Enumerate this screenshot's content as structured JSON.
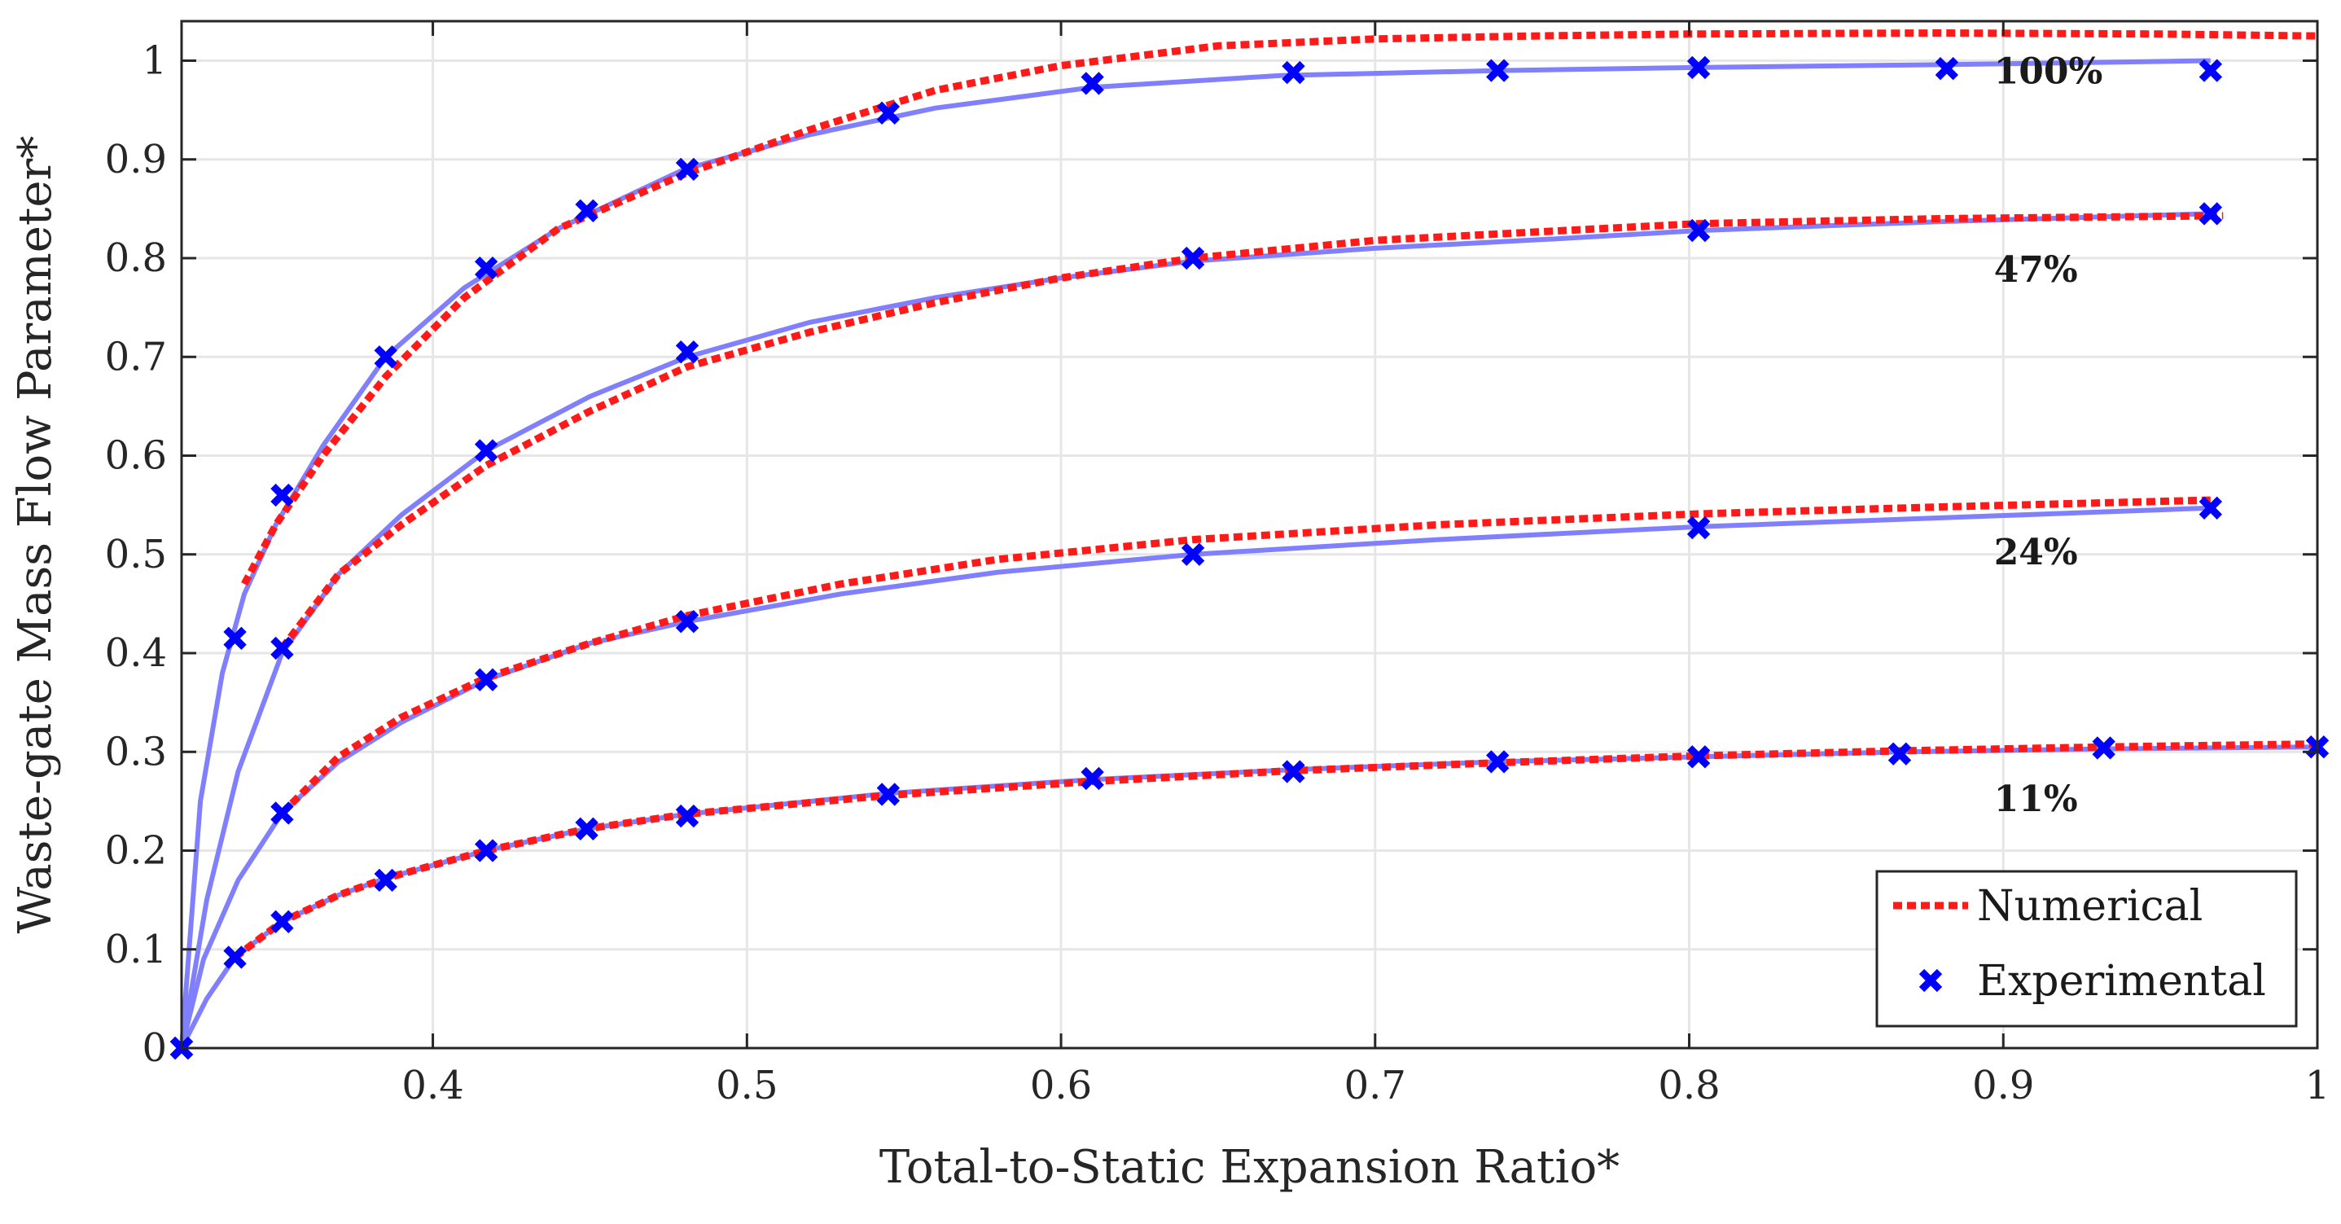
{
  "colors": {
    "numerical": "#ff1a1a",
    "experimental": "#0000ff",
    "fit": "#8080ff",
    "axis": "#262626"
  },
  "chart_data": {
    "type": "line",
    "title": "",
    "xlabel": "Total-to-Static Expansion Ratio*",
    "ylabel": "Waste-gate Mass Flow Parameter*",
    "xlim": [
      0.32,
      1.0
    ],
    "ylim": [
      0,
      1.04
    ],
    "grid": true,
    "xticks": [
      "0.4",
      "0.5",
      "0.6",
      "0.7",
      "0.8",
      "0.9",
      "1"
    ],
    "xtick_values": [
      0.4,
      0.5,
      0.6,
      0.7,
      0.8,
      0.9,
      1.0
    ],
    "yticks": [
      "0",
      "0.1",
      "0.2",
      "0.3",
      "0.4",
      "0.5",
      "0.6",
      "0.7",
      "0.8",
      "0.9",
      "1"
    ],
    "ytick_values": [
      0,
      0.1,
      0.2,
      0.3,
      0.4,
      0.5,
      0.6,
      0.7,
      0.8,
      0.9,
      1.0
    ],
    "legend": {
      "location": "bottom-right",
      "entries": [
        "Numerical",
        "Experimental"
      ]
    },
    "series": [
      {
        "name": "100%",
        "label": "100%",
        "label_at": [
          0.897,
          0.977
        ],
        "experimental": {
          "x": [
            0.32,
            0.337,
            0.352,
            0.385,
            0.417,
            0.449,
            0.481,
            0.545,
            0.61,
            0.674,
            0.739,
            0.803,
            0.882,
            0.966
          ],
          "y": [
            0.0,
            0.415,
            0.56,
            0.7,
            0.79,
            0.848,
            0.89,
            0.947,
            0.977,
            0.988,
            0.99,
            0.993,
            0.992,
            0.99
          ]
        },
        "fit": {
          "x": [
            0.32,
            0.326,
            0.333,
            0.34,
            0.35,
            0.365,
            0.385,
            0.41,
            0.44,
            0.48,
            0.52,
            0.56,
            0.61,
            0.67,
            0.74,
            0.8,
            0.88,
            0.966
          ],
          "y": [
            0.0,
            0.25,
            0.38,
            0.46,
            0.53,
            0.61,
            0.7,
            0.77,
            0.83,
            0.89,
            0.925,
            0.952,
            0.973,
            0.985,
            0.99,
            0.993,
            0.996,
            1.0
          ]
        },
        "numerical": {
          "x": [
            0.34,
            0.35,
            0.365,
            0.385,
            0.41,
            0.44,
            0.48,
            0.52,
            0.56,
            0.6,
            0.65,
            0.7,
            0.75,
            0.8,
            0.88,
            0.95,
            1.0
          ],
          "y": [
            0.47,
            0.53,
            0.6,
            0.68,
            0.76,
            0.83,
            0.885,
            0.93,
            0.97,
            0.995,
            1.015,
            1.022,
            1.025,
            1.027,
            1.028,
            1.027,
            1.025
          ]
        }
      },
      {
        "name": "47%",
        "label": "47%",
        "label_at": [
          0.897,
          0.776
        ],
        "experimental": {
          "x": [
            0.352,
            0.417,
            0.481,
            0.642,
            0.803,
            0.966
          ],
          "y": [
            0.405,
            0.605,
            0.705,
            0.8,
            0.828,
            0.845
          ]
        },
        "fit": {
          "x": [
            0.32,
            0.328,
            0.338,
            0.352,
            0.37,
            0.39,
            0.417,
            0.45,
            0.481,
            0.52,
            0.56,
            0.6,
            0.642,
            0.7,
            0.76,
            0.803,
            0.88,
            0.966
          ],
          "y": [
            0.0,
            0.15,
            0.28,
            0.4,
            0.48,
            0.54,
            0.605,
            0.66,
            0.7,
            0.735,
            0.76,
            0.78,
            0.797,
            0.81,
            0.82,
            0.828,
            0.837,
            0.845
          ]
        },
        "numerical": {
          "x": [
            0.352,
            0.37,
            0.39,
            0.417,
            0.45,
            0.481,
            0.52,
            0.56,
            0.6,
            0.642,
            0.7,
            0.76,
            0.803,
            0.88,
            0.97
          ],
          "y": [
            0.405,
            0.48,
            0.53,
            0.59,
            0.645,
            0.69,
            0.725,
            0.755,
            0.78,
            0.8,
            0.818,
            0.828,
            0.835,
            0.84,
            0.843
          ]
        }
      },
      {
        "name": "24%",
        "label": "24%",
        "label_at": [
          0.897,
          0.49
        ],
        "experimental": {
          "x": [
            0.32,
            0.352,
            0.417,
            0.481,
            0.642,
            0.803,
            0.966
          ],
          "y": [
            0.0,
            0.238,
            0.373,
            0.432,
            0.5,
            0.527,
            0.547
          ]
        },
        "fit": {
          "x": [
            0.32,
            0.327,
            0.338,
            0.352,
            0.37,
            0.39,
            0.417,
            0.45,
            0.481,
            0.53,
            0.58,
            0.642,
            0.72,
            0.803,
            0.88,
            0.966
          ],
          "y": [
            0.0,
            0.09,
            0.17,
            0.238,
            0.29,
            0.33,
            0.373,
            0.41,
            0.432,
            0.46,
            0.482,
            0.5,
            0.515,
            0.528,
            0.537,
            0.547
          ]
        },
        "numerical": {
          "x": [
            0.352,
            0.37,
            0.39,
            0.417,
            0.45,
            0.481,
            0.53,
            0.58,
            0.642,
            0.72,
            0.803,
            0.88,
            0.966
          ],
          "y": [
            0.238,
            0.295,
            0.335,
            0.375,
            0.41,
            0.438,
            0.47,
            0.495,
            0.515,
            0.53,
            0.541,
            0.548,
            0.555
          ]
        }
      },
      {
        "name": "11%",
        "label": "11%",
        "label_at": [
          0.897,
          0.24
        ],
        "experimental": {
          "x": [
            0.32,
            0.337,
            0.352,
            0.385,
            0.417,
            0.449,
            0.481,
            0.545,
            0.61,
            0.674,
            0.739,
            0.803,
            0.867,
            0.932,
            1.0
          ],
          "y": [
            0.0,
            0.092,
            0.128,
            0.17,
            0.2,
            0.222,
            0.235,
            0.257,
            0.273,
            0.28,
            0.29,
            0.295,
            0.298,
            0.304,
            0.305
          ]
        },
        "fit": {
          "x": [
            0.32,
            0.328,
            0.337,
            0.352,
            0.37,
            0.385,
            0.417,
            0.449,
            0.481,
            0.545,
            0.61,
            0.674,
            0.739,
            0.803,
            0.867,
            0.932,
            1.0
          ],
          "y": [
            0.0,
            0.05,
            0.092,
            0.128,
            0.155,
            0.172,
            0.2,
            0.222,
            0.237,
            0.258,
            0.272,
            0.282,
            0.29,
            0.295,
            0.3,
            0.303,
            0.305
          ]
        },
        "numerical": {
          "x": [
            0.337,
            0.352,
            0.37,
            0.385,
            0.417,
            0.449,
            0.481,
            0.545,
            0.61,
            0.674,
            0.739,
            0.803,
            0.867,
            0.932,
            1.0
          ],
          "y": [
            0.092,
            0.128,
            0.155,
            0.172,
            0.2,
            0.222,
            0.237,
            0.256,
            0.27,
            0.281,
            0.289,
            0.296,
            0.301,
            0.305,
            0.308
          ]
        }
      }
    ]
  }
}
